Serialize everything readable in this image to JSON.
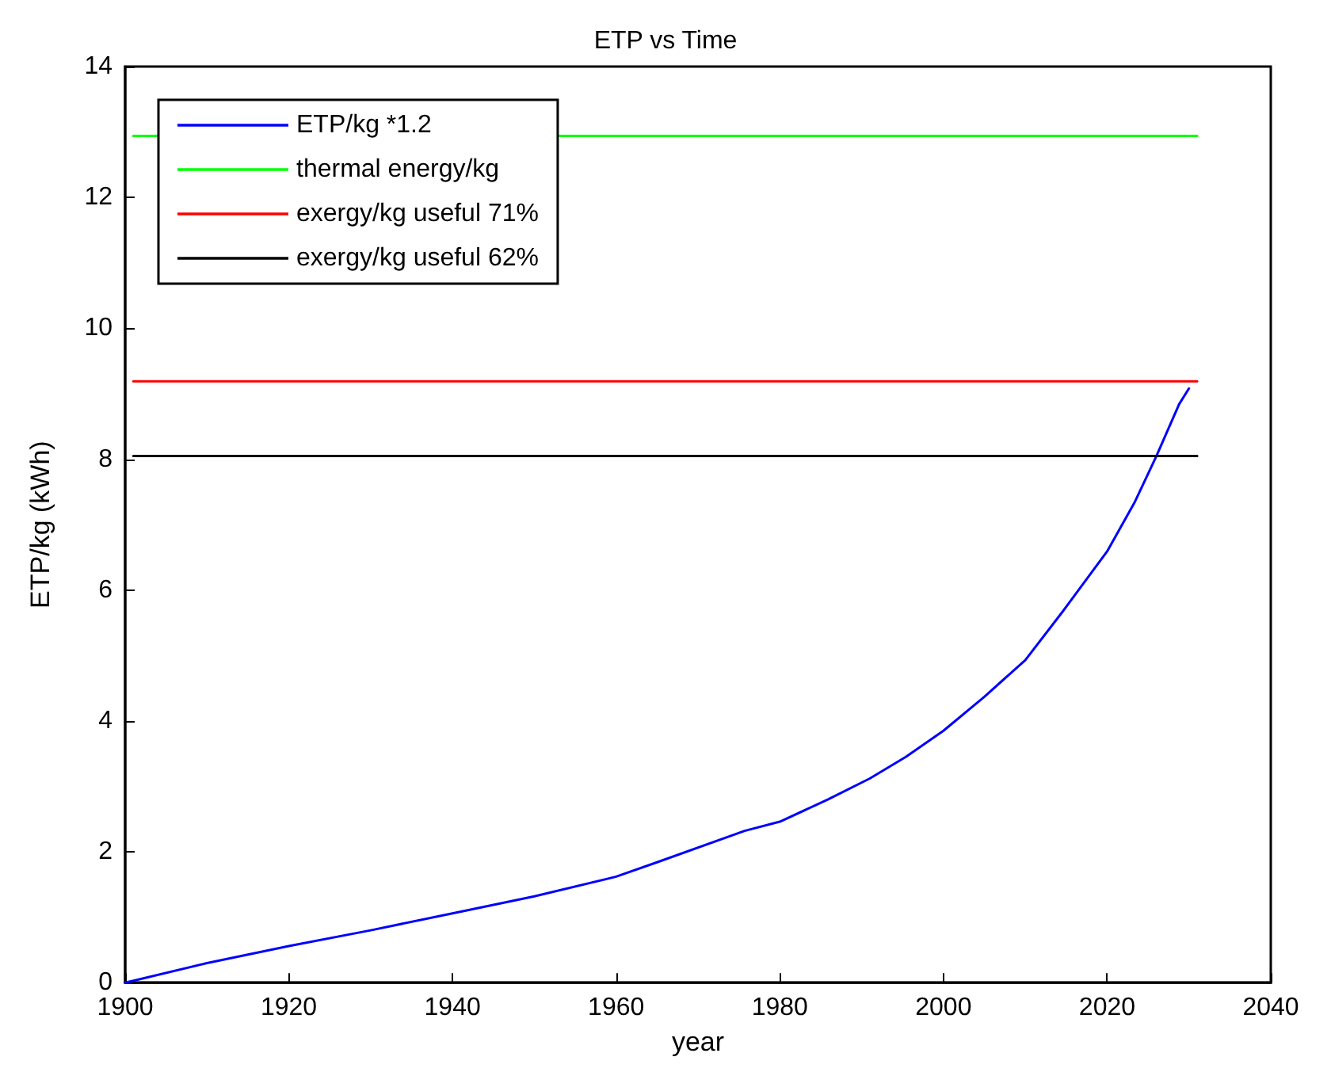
{
  "chart_data": {
    "type": "line",
    "title": "ETP vs Time",
    "xlabel": "year",
    "ylabel": "ETP/kg (kWh)",
    "xlim": [
      1900,
      2040
    ],
    "xticks": [
      1900,
      1920,
      1940,
      1960,
      1980,
      2000,
      2020,
      2040
    ],
    "ylim": [
      0,
      14
    ],
    "yticks": [
      0,
      2,
      4,
      6,
      8,
      10,
      12,
      14
    ],
    "grid": false,
    "legend": "top left",
    "marker": "none",
    "line_style": "solid",
    "series": [
      {
        "name": "ETP/kg *1.2",
        "color": "#0000ff",
        "x": [
          1900,
          1910,
          1920,
          1930,
          1940,
          1950,
          1960,
          1965,
          1975.7,
          1980,
          1985.9,
          1991,
          1995.4,
          2000,
          2005,
          2010,
          2014.5,
          2020,
          2023.4,
          2026,
          2028.8,
          2030
        ],
        "values": [
          0,
          0.3,
          0.56,
          0.8,
          1.06,
          1.32,
          1.62,
          1.84,
          2.32,
          2.46,
          2.8,
          3.12,
          3.45,
          3.85,
          4.37,
          4.93,
          5.66,
          6.59,
          7.35,
          8.04,
          8.84,
          9.08
        ]
      },
      {
        "name": "thermal energy/kg",
        "color": "#00ff00",
        "x": [
          1901,
          2031
        ],
        "values": [
          12.94,
          12.94
        ]
      },
      {
        "name": "exergy/kg useful 71%",
        "color": "#ff0000",
        "x": [
          1901,
          2031
        ],
        "values": [
          9.19,
          9.19
        ]
      },
      {
        "name": "exergy/kg useful 62%",
        "color": "#000000",
        "x": [
          1901,
          2031
        ],
        "values": [
          8.05,
          8.05
        ]
      }
    ]
  }
}
